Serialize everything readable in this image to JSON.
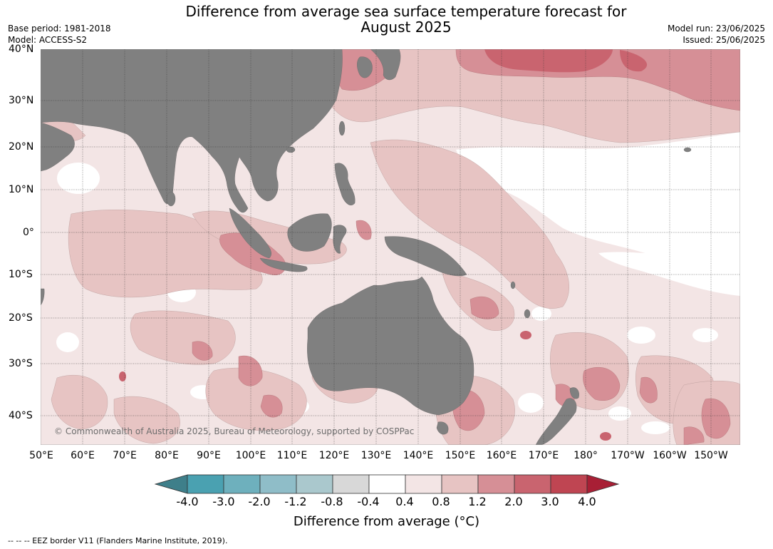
{
  "title_line1": "Difference from average sea surface temperature forecast for",
  "title_line2": "August 2025",
  "base_period": "Base period: 1981-2018",
  "model": "Model: ACCESS-S2",
  "model_run": "Model run: 23/06/2025",
  "issued": "Issued: 25/06/2025",
  "lat_labels": [
    "40°N",
    "30°N",
    "20°N",
    "10°N",
    "0°",
    "10°S",
    "20°S",
    "30°S",
    "40°S"
  ],
  "lon_labels": [
    "50°E",
    "60°E",
    "70°E",
    "80°E",
    "90°E",
    "100°E",
    "110°E",
    "120°E",
    "130°E",
    "140°E",
    "150°E",
    "160°E",
    "170°E",
    "180°",
    "170°W",
    "160°W",
    "150°W"
  ],
  "colorbar": {
    "ticks": [
      "-4.0",
      "-3.0",
      "-2.0",
      "-1.2",
      "-0.8",
      "-0.4",
      "0.4",
      "0.8",
      "1.2",
      "2.0",
      "3.0",
      "4.0"
    ],
    "colors": {
      "below": "#3e7f8a",
      "bins": [
        "#4aa1b1",
        "#6eb0bd",
        "#8fbdc8",
        "#aac8cd",
        "#d8d8d8",
        "#ffffff",
        "#f3e5e5",
        "#e7c4c3",
        "#d68f96",
        "#c9646f",
        "#bf4552"
      ],
      "above": "#a81f35"
    },
    "label": "Difference from average (°C)"
  },
  "land_color": "#808080",
  "copyright": "© Commonwealth of Australia 2025, Bureau of Meteorology, supported by COSPPac",
  "footnote": "--  --  -- EEZ border V11 (Flanders Marine Institute, 2019)."
}
